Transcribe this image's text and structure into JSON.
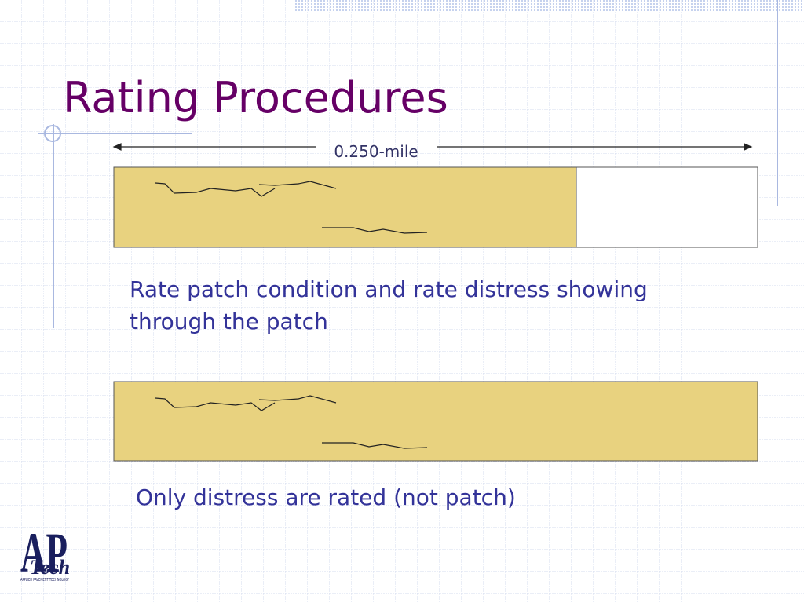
{
  "title": "Rating Procedures",
  "distance_label": "0.250-mile",
  "caption_1": "Rate patch condition and rate distress showing through the patch",
  "caption_2": "Only distress are rated (not patch)",
  "logo": {
    "mark": "AP",
    "word": "Tech",
    "company": "APPLIED PAVEMENT TECHNOLOGY"
  }
}
